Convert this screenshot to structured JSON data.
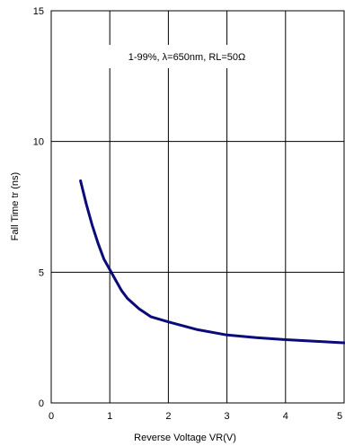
{
  "chart_data": {
    "type": "line",
    "title": "",
    "xlabel": "Reverse Voltage  VR(V)",
    "ylabel": "Fall Time  tr (ns)",
    "annotation": "1-99%, λ=650nm, RL=50Ω",
    "xlim": [
      0,
      5
    ],
    "ylim": [
      0,
      15
    ],
    "xticks": [
      0,
      1,
      2,
      3,
      4,
      5
    ],
    "yticks": [
      0,
      5,
      10,
      15
    ],
    "grid": true,
    "series": [
      {
        "color": "#0a0a78",
        "x": [
          0.5,
          0.6,
          0.7,
          0.8,
          0.9,
          1.0,
          1.1,
          1.2,
          1.3,
          1.5,
          1.7,
          2.0,
          2.5,
          3.0,
          3.5,
          4.0,
          4.5,
          5.0
        ],
        "y": [
          8.5,
          7.6,
          6.8,
          6.1,
          5.5,
          5.1,
          4.7,
          4.3,
          4.0,
          3.6,
          3.3,
          3.1,
          2.8,
          2.6,
          2.5,
          2.42,
          2.36,
          2.3
        ]
      }
    ]
  }
}
